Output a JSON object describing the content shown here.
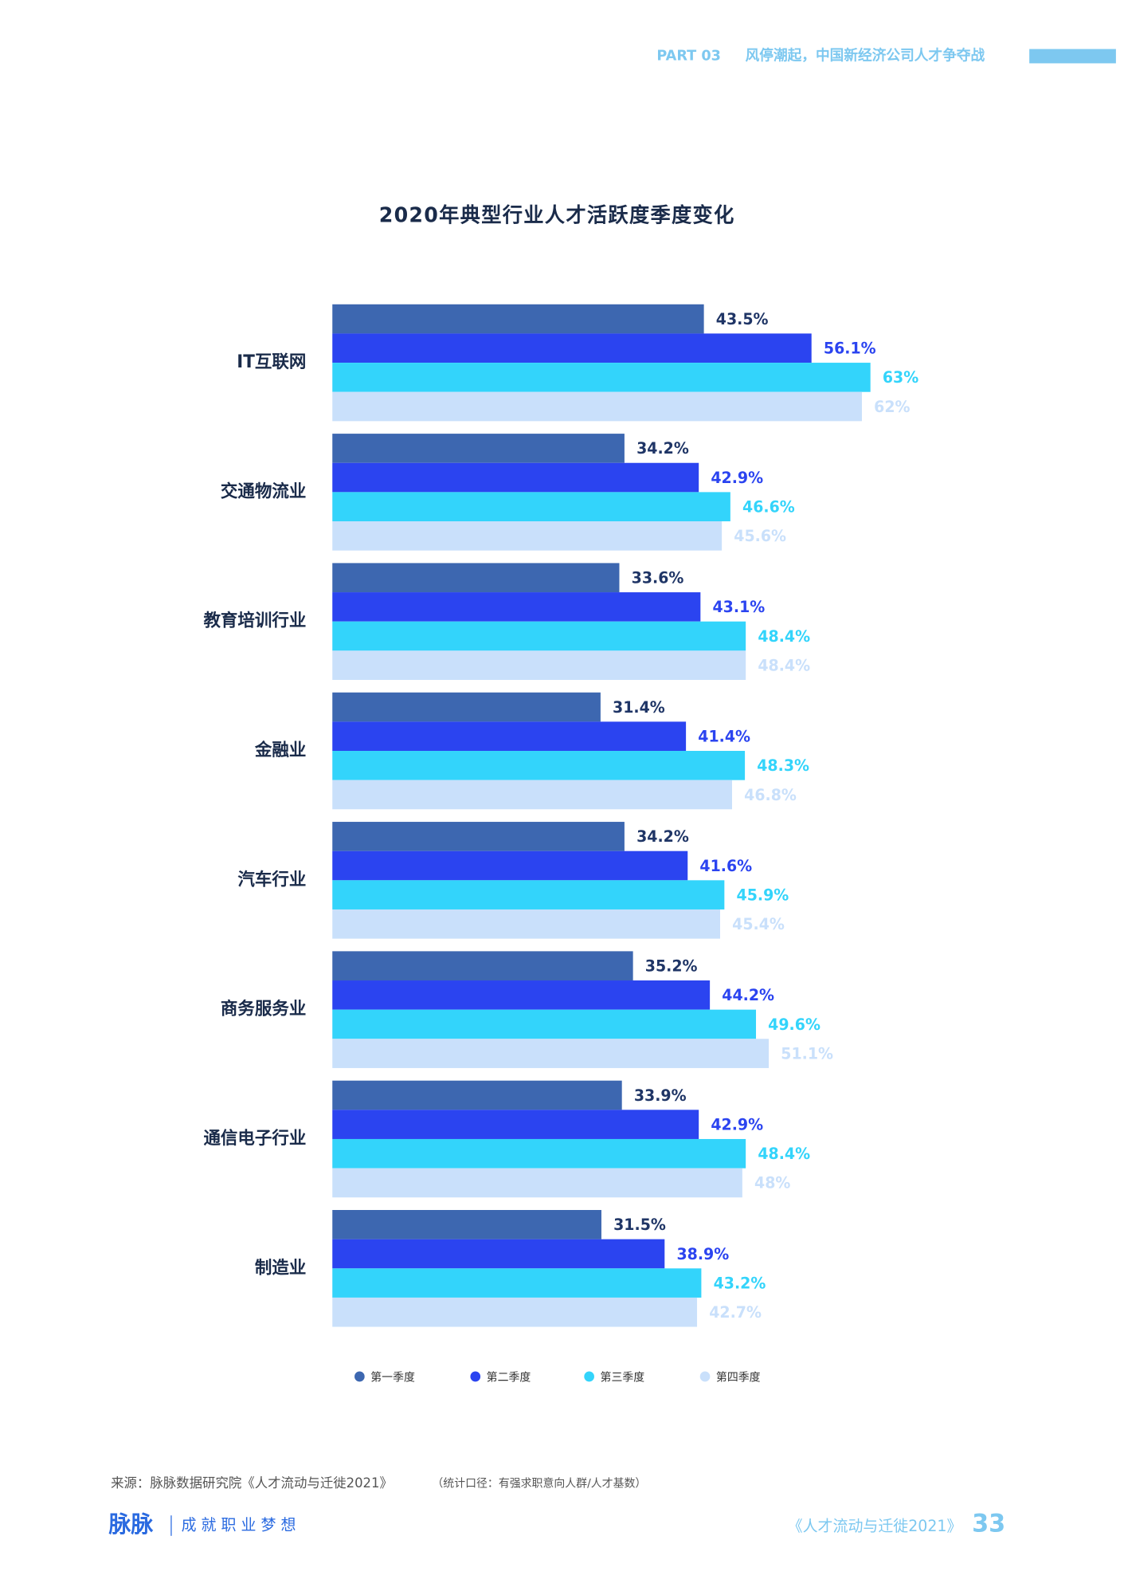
{
  "header": {
    "part": "PART 03",
    "section": "风停潮起，中国新经济公司人才争夺战"
  },
  "chart_data": {
    "type": "bar",
    "orientation": "horizontal",
    "title": "2020年典型行业人才活跃度季度变化",
    "categories": [
      "IT互联网",
      "交通物流业",
      "教育培训行业",
      "金融业",
      "汽车行业",
      "商务服务业",
      "通信电子行业",
      "制造业"
    ],
    "series": [
      {
        "name": "第一季度",
        "color": "#3d67b0",
        "values": [
          43.5,
          34.2,
          33.6,
          31.4,
          34.2,
          35.2,
          33.9,
          31.5
        ],
        "value_labels": [
          "43.5%",
          "34.2%",
          "33.6%",
          "31.4%",
          "34.2%",
          "35.2%",
          "33.9%",
          "31.5%"
        ]
      },
      {
        "name": "第二季度",
        "color": "#2b44f0",
        "values": [
          56.1,
          42.9,
          43.1,
          41.4,
          41.6,
          44.2,
          42.9,
          38.9
        ],
        "value_labels": [
          "56.1%",
          "42.9%",
          "43.1%",
          "41.4%",
          "41.6%",
          "44.2%",
          "42.9%",
          "38.9%"
        ]
      },
      {
        "name": "第三季度",
        "color": "#33d4fb",
        "values": [
          63,
          46.6,
          48.4,
          48.3,
          45.9,
          49.6,
          48.4,
          43.2
        ],
        "value_labels": [
          "63%",
          "46.6%",
          "48.4%",
          "48.3%",
          "45.9%",
          "49.6%",
          "48.4%",
          "43.2%"
        ]
      },
      {
        "name": "第四季度",
        "color": "#c9e0fb",
        "values": [
          62,
          45.6,
          48.4,
          46.8,
          45.4,
          51.1,
          48,
          42.7
        ],
        "value_labels": [
          "62%",
          "45.6%",
          "48.4%",
          "46.8%",
          "45.4%",
          "51.1%",
          "48%",
          "42.7%"
        ]
      }
    ],
    "legend": "bottom"
  },
  "footer": {
    "source": "来源：脉脉数据研究院《人才流动与迁徙2021》",
    "note": "（统计口径：有强求职意向人群/人才基数）",
    "logo": "脉脉",
    "slogan": "成 就 职 业 梦 想",
    "report": "《人才流动与迁徙2021》",
    "page": "33"
  }
}
